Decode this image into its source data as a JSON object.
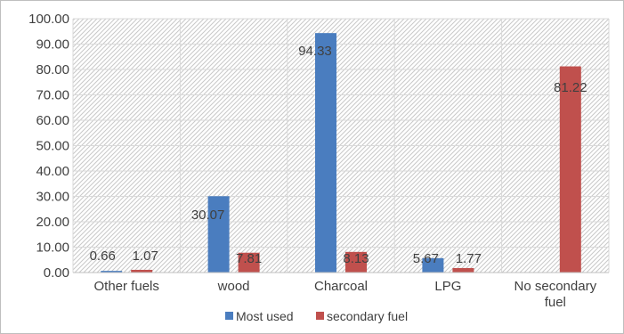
{
  "chart_data": {
    "type": "bar",
    "categories": [
      "Other fuels",
      "wood",
      "Charcoal",
      "LPG",
      "No secondary fuel"
    ],
    "series": [
      {
        "name": "Most used",
        "values": [
          0.66,
          30.07,
          94.33,
          5.67,
          null
        ],
        "labels": [
          "0.66",
          "30.07",
          "94.33",
          "5.67",
          ""
        ],
        "color": "#4a7dbf"
      },
      {
        "name": "secondary fuel",
        "values": [
          1.07,
          7.81,
          8.13,
          1.77,
          81.22
        ],
        "labels": [
          "1.07",
          "7.81",
          "8.13",
          "1.77",
          "81.22"
        ],
        "color": "#c0504d"
      }
    ],
    "ylim": [
      0,
      100
    ],
    "yticks": [
      "0.00",
      "10.00",
      "20.00",
      "30.00",
      "40.00",
      "50.00",
      "60.00",
      "70.00",
      "80.00",
      "90.00",
      "100.00"
    ],
    "grid": true,
    "legend": "bottom"
  }
}
